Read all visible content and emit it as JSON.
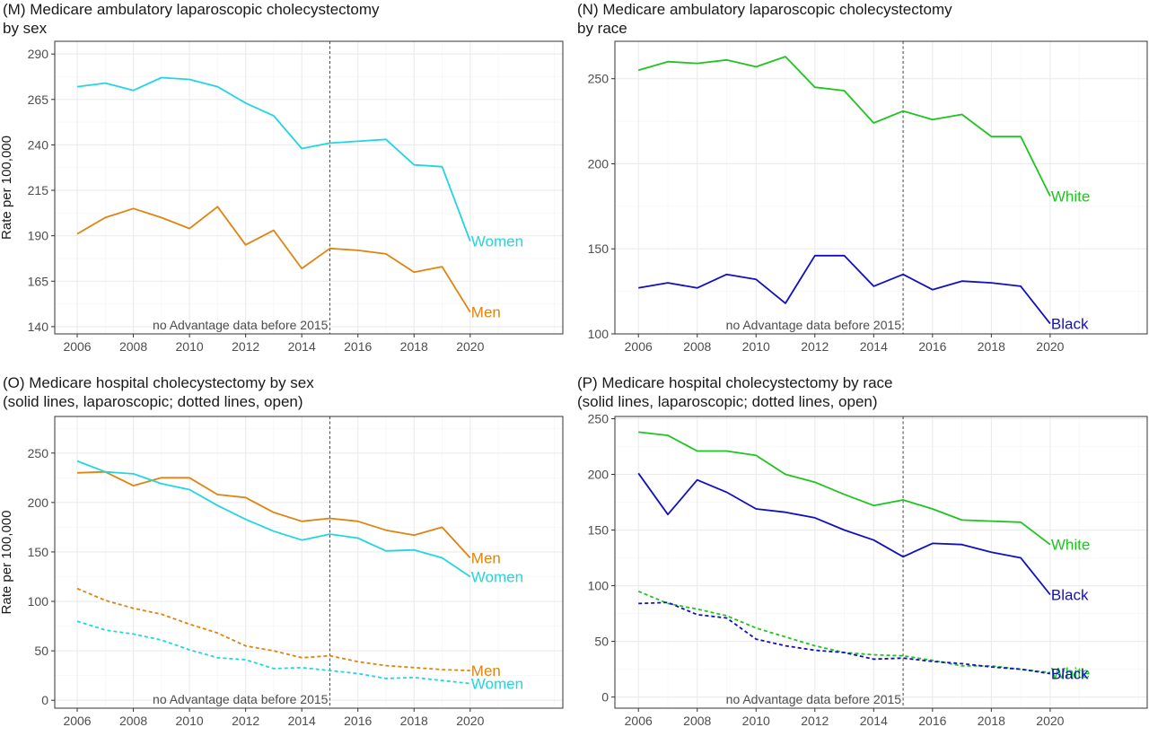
{
  "panels": [
    {
      "id": "M",
      "title_line1": "(M) Medicare ambulatory laparoscopic cholecystectomy",
      "title_line2": "by sex",
      "ylabel": "Rate per 100,000",
      "note": "no Advantage data before 2015",
      "chart_data": {
        "type": "line",
        "x": [
          2006,
          2007,
          2008,
          2009,
          2010,
          2011,
          2012,
          2013,
          2014,
          2015,
          2016,
          2017,
          2018,
          2019,
          2020
        ],
        "xlim": [
          2005.2,
          2023.3
        ],
        "xticks": [
          2006,
          2008,
          2010,
          2012,
          2014,
          2016,
          2018,
          2020
        ],
        "ylim": [
          136,
          297
        ],
        "yticks": [
          140,
          165,
          190,
          215,
          240,
          265,
          290
        ],
        "vline": 2015,
        "series": [
          {
            "name": "Women",
            "color": "#21d6e0",
            "style": "solid",
            "values": [
              272,
              274,
              270,
              277,
              276,
              272,
              263,
              256,
              238,
              241,
              242,
              243,
              229,
              228,
              187
            ]
          },
          {
            "name": "Men",
            "color": "#e0830f",
            "style": "solid",
            "values": [
              191,
              200,
              205,
              200,
              194,
              206,
              185,
              193,
              172,
              183,
              182,
              180,
              170,
              173,
              148
            ]
          }
        ]
      }
    },
    {
      "id": "N",
      "title_line1": "(N) Medicare ambulatory laparoscopic cholecystectomy",
      "title_line2": "by race",
      "ylabel": "",
      "note": "no Advantage data before 2015",
      "chart_data": {
        "type": "line",
        "x": [
          2006,
          2007,
          2008,
          2009,
          2010,
          2011,
          2012,
          2013,
          2014,
          2015,
          2016,
          2017,
          2018,
          2019,
          2020
        ],
        "xlim": [
          2005.2,
          2023.3
        ],
        "xticks": [
          2006,
          2008,
          2010,
          2012,
          2014,
          2016,
          2018,
          2020
        ],
        "ylim": [
          100,
          272
        ],
        "yticks": [
          100,
          150,
          200,
          250
        ],
        "vline": 2015,
        "series": [
          {
            "name": "White",
            "color": "#1ec51e",
            "style": "solid",
            "values": [
              255,
              260,
              259,
              261,
              257,
              263,
              245,
              243,
              224,
              231,
              226,
              229,
              216,
              216,
              181
            ]
          },
          {
            "name": "Black",
            "color": "#1010c0",
            "style": "solid",
            "values": [
              127,
              130,
              127,
              135,
              132,
              118,
              146,
              146,
              128,
              135,
              126,
              131,
              130,
              128,
              106
            ]
          }
        ]
      }
    },
    {
      "id": "O",
      "title_line1": "(O) Medicare hospital cholecystectomy by sex",
      "title_line2": "(solid lines, laparoscopic; dotted lines, open)",
      "ylabel": "Rate per 100,000",
      "note": "no Advantage data before 2015",
      "chart_data": {
        "type": "line",
        "x": [
          2006,
          2007,
          2008,
          2009,
          2010,
          2011,
          2012,
          2013,
          2014,
          2015,
          2016,
          2017,
          2018,
          2019,
          2020
        ],
        "xlim": [
          2005.2,
          2023.3
        ],
        "xticks": [
          2006,
          2008,
          2010,
          2012,
          2014,
          2016,
          2018,
          2020
        ],
        "ylim": [
          -8,
          287
        ],
        "yticks": [
          0,
          50,
          100,
          150,
          200,
          250
        ],
        "vline": 2015,
        "series": [
          {
            "name": "Men",
            "color": "#e0830f",
            "style": "solid",
            "values": [
              230,
              231,
              217,
              225,
              225,
              208,
              205,
              190,
              181,
              184,
              181,
              172,
              167,
              175,
              144
            ]
          },
          {
            "name": "Women",
            "color": "#21d6e0",
            "style": "solid",
            "values": [
              242,
              231,
              229,
              219,
              213,
              197,
              183,
              171,
              162,
              168,
              164,
              151,
              152,
              144,
              125
            ]
          },
          {
            "name": "Men",
            "color": "#e0830f",
            "style": "dotted",
            "values": [
              113,
              101,
              93,
              87,
              77,
              68,
              55,
              50,
              43,
              45,
              39,
              35,
              33,
              31,
              30
            ]
          },
          {
            "name": "Women",
            "color": "#21d6e0",
            "style": "dotted",
            "values": [
              80,
              71,
              67,
              61,
              51,
              43,
              41,
              32,
              33,
              30,
              27,
              22,
              23,
              20,
              17
            ]
          }
        ]
      }
    },
    {
      "id": "P",
      "title_line1": "(P) Medicare hospital cholecystectomy by race",
      "title_line2": "(solid lines, laparoscopic; dotted lines, open)",
      "ylabel": "",
      "note": "no Advantage data before 2015",
      "chart_data": {
        "type": "line",
        "x": [
          2006,
          2007,
          2008,
          2009,
          2010,
          2011,
          2012,
          2013,
          2014,
          2015,
          2016,
          2017,
          2018,
          2019,
          2020
        ],
        "xlim": [
          2005.2,
          2023.3
        ],
        "xticks": [
          2006,
          2008,
          2010,
          2012,
          2014,
          2016,
          2018,
          2020
        ],
        "ylim": [
          -10,
          252
        ],
        "yticks": [
          0,
          50,
          100,
          150,
          200,
          250
        ],
        "vline": 2015,
        "series": [
          {
            "name": "White",
            "color": "#1ec51e",
            "style": "solid",
            "values": [
              238,
              235,
              221,
              221,
              217,
              200,
              193,
              182,
              172,
              177,
              169,
              159,
              158,
              157,
              137
            ]
          },
          {
            "name": "Black",
            "color": "#1010c0",
            "style": "solid",
            "values": [
              201,
              164,
              195,
              184,
              169,
              166,
              161,
              150,
              141,
              126,
              138,
              137,
              130,
              125,
              92
            ]
          },
          {
            "name": "White",
            "color": "#1ec51e",
            "style": "dotted",
            "values": [
              95,
              84,
              79,
              73,
              62,
              54,
              46,
              40,
              38,
              37,
              33,
              28,
              28,
              25,
              22
            ]
          },
          {
            "name": "Black",
            "color": "#1010c0",
            "style": "dotted",
            "values": [
              84,
              85,
              74,
              71,
              52,
              46,
              42,
              40,
              34,
              35,
              32,
              30,
              27,
              25,
              21
            ]
          }
        ]
      }
    }
  ]
}
